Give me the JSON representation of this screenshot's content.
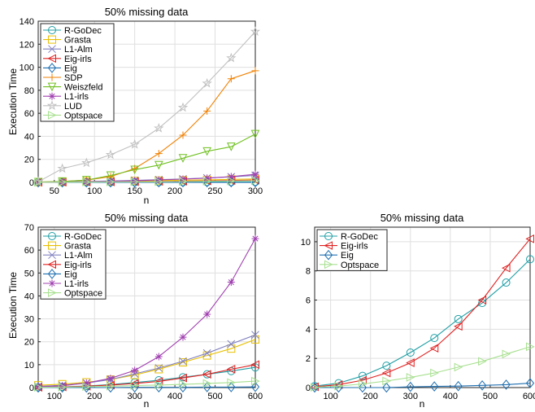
{
  "chart_data": [
    {
      "type": "line",
      "title": "50% missing data",
      "xlabel": "n",
      "ylabel": "Execution Time",
      "xlim": [
        30,
        300
      ],
      "ylim": [
        0,
        140
      ],
      "xticks": [
        50,
        100,
        150,
        200,
        250,
        300
      ],
      "yticks": [
        0,
        20,
        40,
        60,
        80,
        100,
        120,
        140
      ],
      "legend": "top-left",
      "x": [
        30,
        60,
        90,
        120,
        150,
        180,
        210,
        240,
        270,
        300
      ],
      "series": [
        {
          "name": "R-GoDec",
          "color": "#1f9ea5",
          "marker": "circle",
          "values": [
            0,
            0,
            0,
            0.1,
            0.1,
            0.2,
            0.2,
            0.3,
            0.3,
            0.4
          ]
        },
        {
          "name": "Grasta",
          "color": "#e8c000",
          "marker": "square",
          "values": [
            0.3,
            0.5,
            0.8,
            1,
            1.3,
            1.6,
            1.9,
            2.2,
            2.6,
            3
          ]
        },
        {
          "name": "L1-Alm",
          "color": "#8080c0",
          "marker": "x",
          "values": [
            0.2,
            0.5,
            0.8,
            1.2,
            1.7,
            2.3,
            3,
            3.8,
            4.8,
            6
          ]
        },
        {
          "name": "Eig-irls",
          "color": "#e02020",
          "marker": "triangle-left",
          "values": [
            0.1,
            0.2,
            0.3,
            0.4,
            0.6,
            0.8,
            1,
            1.3,
            1.6,
            2
          ]
        },
        {
          "name": "Eig",
          "color": "#1f6fb0",
          "marker": "diamond",
          "values": [
            0,
            0,
            0,
            0,
            0,
            0.1,
            0.1,
            0.1,
            0.1,
            0.1
          ]
        },
        {
          "name": "SDP",
          "color": "#f08000",
          "marker": "plus",
          "values": [
            0.2,
            0.8,
            2,
            5,
            12,
            25,
            41,
            62,
            90,
            97
          ]
        },
        {
          "name": "Weiszfeld",
          "color": "#70c020",
          "marker": "triangle-down",
          "values": [
            0.3,
            0.8,
            2,
            6,
            11,
            15,
            21,
            27,
            31,
            42
          ]
        },
        {
          "name": "L1-irls",
          "color": "#a040b0",
          "marker": "asterisk",
          "values": [
            0.1,
            0.3,
            0.6,
            1,
            1.5,
            2.1,
            2.8,
            3.7,
            5,
            7
          ]
        },
        {
          "name": "LUD",
          "color": "#c0c0c0",
          "marker": "star",
          "values": [
            0.5,
            12,
            17,
            24,
            33,
            47,
            65,
            86,
            108,
            131
          ]
        },
        {
          "name": "Optspace",
          "color": "#a8e090",
          "marker": "triangle-right",
          "values": [
            0.1,
            0.2,
            0.3,
            0.4,
            0.5,
            0.6,
            0.8,
            1,
            1.2,
            1.5
          ]
        }
      ]
    },
    {
      "type": "line",
      "title": "50% missing data",
      "xlabel": "n",
      "ylabel": "Execution Time",
      "xlim": [
        60,
        600
      ],
      "ylim": [
        0,
        70
      ],
      "xticks": [
        100,
        200,
        300,
        400,
        500,
        600
      ],
      "yticks": [
        0,
        10,
        20,
        30,
        40,
        50,
        60,
        70
      ],
      "legend": "top-left",
      "x": [
        60,
        120,
        180,
        240,
        300,
        360,
        420,
        480,
        540,
        600
      ],
      "series": [
        {
          "name": "R-GoDec",
          "color": "#1f9ea5",
          "marker": "circle",
          "values": [
            0.1,
            0.3,
            0.7,
            1.3,
            2.2,
            3.2,
            4.5,
            5.8,
            7.2,
            8.8
          ]
        },
        {
          "name": "Grasta",
          "color": "#e8c000",
          "marker": "square",
          "values": [
            1,
            1.5,
            2.3,
            3.5,
            5.5,
            8,
            11,
            14,
            17,
            21
          ]
        },
        {
          "name": "L1-Alm",
          "color": "#8080c0",
          "marker": "x",
          "values": [
            0.5,
            1,
            2,
            3.5,
            6,
            8.5,
            11.5,
            15,
            19,
            23
          ]
        },
        {
          "name": "Eig-irls",
          "color": "#e02020",
          "marker": "triangle-left",
          "values": [
            0.1,
            0.3,
            0.6,
            1.1,
            1.8,
            2.7,
            4.2,
            5.8,
            8,
            10
          ]
        },
        {
          "name": "Eig",
          "color": "#1f6fb0",
          "marker": "diamond",
          "values": [
            0,
            0,
            0,
            0,
            0.1,
            0.1,
            0.1,
            0.2,
            0.2,
            0.3
          ]
        },
        {
          "name": "L1-irls",
          "color": "#a040b0",
          "marker": "asterisk",
          "values": [
            0.3,
            0.8,
            2,
            4,
            7.5,
            13.5,
            22,
            32,
            46,
            65
          ]
        },
        {
          "name": "Optspace",
          "color": "#a8e090",
          "marker": "triangle-right",
          "values": [
            0.1,
            0.2,
            0.4,
            0.6,
            0.9,
            1.1,
            1.4,
            1.8,
            2.2,
            2.8
          ]
        }
      ]
    },
    {
      "type": "line",
      "title": "50% missing data",
      "xlabel": "n",
      "ylabel": "",
      "xlim": [
        60,
        600
      ],
      "ylim": [
        0,
        11
      ],
      "xticks": [
        100,
        200,
        300,
        400,
        500,
        600
      ],
      "yticks": [
        0,
        2,
        4,
        6,
        8,
        10
      ],
      "legend": "top-left",
      "x": [
        60,
        120,
        180,
        240,
        300,
        360,
        420,
        480,
        540,
        600
      ],
      "series": [
        {
          "name": "R-GoDec",
          "color": "#1f9ea5",
          "marker": "circle",
          "values": [
            0.1,
            0.3,
            0.8,
            1.5,
            2.4,
            3.4,
            4.7,
            5.8,
            7.2,
            8.8
          ]
        },
        {
          "name": "Eig-irls",
          "color": "#e02020",
          "marker": "triangle-left",
          "values": [
            0.05,
            0.2,
            0.5,
            1,
            1.7,
            2.7,
            4.2,
            6,
            8.2,
            10.2
          ]
        },
        {
          "name": "Eig",
          "color": "#1f6fb0",
          "marker": "diamond",
          "values": [
            0,
            0,
            0,
            0,
            0.05,
            0.08,
            0.1,
            0.15,
            0.2,
            0.3
          ]
        },
        {
          "name": "Optspace",
          "color": "#a8e090",
          "marker": "triangle-right",
          "values": [
            0.02,
            0.1,
            0.25,
            0.45,
            0.7,
            1,
            1.4,
            1.8,
            2.3,
            2.8
          ]
        }
      ]
    }
  ]
}
